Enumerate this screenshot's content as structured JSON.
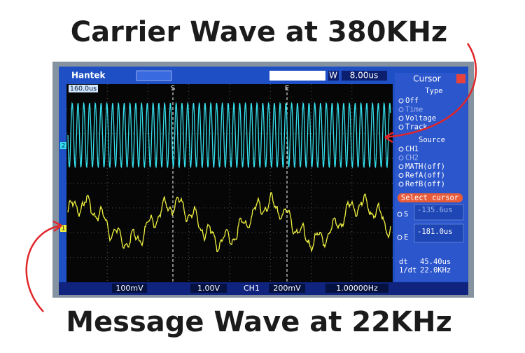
{
  "header": {
    "top_caption": "Carrier Wave at 380KHz",
    "bottom_caption": "Message Wave at 22KHz"
  },
  "scope": {
    "brand": "Hantek",
    "mode": "W",
    "timebase": "8.00us",
    "trigger_position": "160.0us",
    "cursor_markers": [
      "S",
      "E"
    ],
    "channel_markers": [
      "2",
      "1"
    ]
  },
  "cursor_panel": {
    "title": "Cursor",
    "type_heading": "Type",
    "type_options": [
      "Off",
      "Time",
      "Voltage",
      "Track"
    ],
    "source_heading": "Source",
    "source_options": [
      "CH1",
      "CH2",
      "MATH(off)",
      "RefA(off)",
      "RefB(off)"
    ],
    "select_button": "Select cursor",
    "s_label": "S",
    "s_value": "-135.6us",
    "e_label": "E",
    "e_value": "-181.0us",
    "dt_label": "dt",
    "dt_value": "45.40us",
    "inv_dt_label": "1/dt",
    "inv_dt_value": "22.0KHz"
  },
  "status_bar": {
    "ch1_scale": "100mV",
    "ch2_scale": "1.00V",
    "trigger_source": "CH1",
    "trigger_level": "200mV",
    "frequency": "1.00000Hz"
  }
}
